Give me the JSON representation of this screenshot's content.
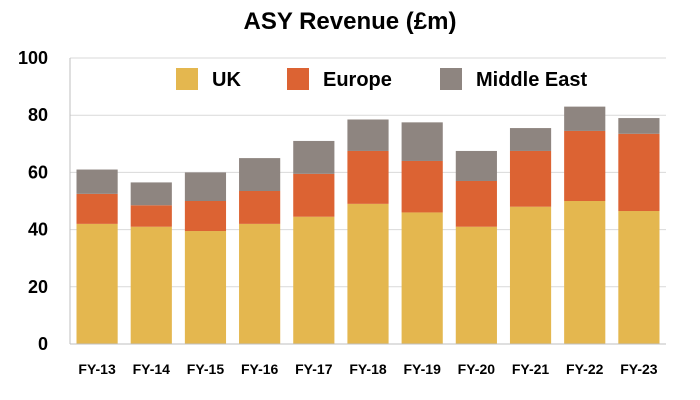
{
  "chart_data": {
    "type": "bar",
    "stacked": true,
    "title": "ASY Revenue (£m)",
    "xlabel": "",
    "ylabel": "",
    "categories": [
      "FY-13",
      "FY-14",
      "FY-15",
      "FY-16",
      "FY-17",
      "FY-18",
      "FY-19",
      "FY-20",
      "FY-21",
      "FY-22",
      "FY-23"
    ],
    "series": [
      {
        "name": "UK",
        "color": "#E4B74F",
        "values": [
          42,
          41,
          39.5,
          42,
          44.5,
          49,
          46,
          41,
          48,
          50,
          46.5
        ]
      },
      {
        "name": "Europe",
        "color": "#DC6333",
        "values": [
          10.5,
          7.5,
          10.5,
          11.5,
          15,
          18.5,
          18,
          16,
          19.5,
          24.5,
          27
        ]
      },
      {
        "name": "Middle East",
        "color": "#8E8580",
        "values": [
          8.5,
          8,
          10,
          11.5,
          11.5,
          11,
          13.5,
          10.5,
          8,
          8.5,
          5.5
        ]
      }
    ],
    "ylim": [
      0,
      100
    ],
    "yticks": [
      0,
      20,
      40,
      60,
      80,
      100
    ],
    "grid": true,
    "legend": "top"
  }
}
